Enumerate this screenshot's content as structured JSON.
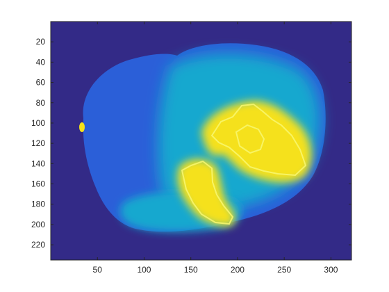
{
  "chart_data": {
    "type": "heatmap",
    "colormap": "parula",
    "colors": {
      "background": "#332a87",
      "low": "#2b5fd8",
      "mid": "#17a8cf",
      "high": "#f5e11a",
      "peak": "#f9f871",
      "axis": "#262626"
    },
    "xlim": [
      0,
      322
    ],
    "ylim": [
      235,
      0
    ],
    "x_ticks": [
      50,
      100,
      150,
      200,
      250,
      300
    ],
    "y_ticks": [
      20,
      40,
      60,
      80,
      100,
      120,
      140,
      160,
      180,
      200,
      220
    ],
    "x_tick_labels": [
      "50",
      "100",
      "150",
      "200",
      "250",
      "300"
    ],
    "y_tick_labels": [
      "20",
      "40",
      "60",
      "80",
      "100",
      "120",
      "140",
      "160",
      "180",
      "200",
      "220"
    ],
    "regions": [
      {
        "name": "tissue-section",
        "level": 0.35,
        "center": [
          190,
          130
        ],
        "extent": [
          135,
          95
        ]
      },
      {
        "name": "right-lobe",
        "level": 0.55,
        "center": [
          255,
          110
        ],
        "extent": [
          75,
          65
        ]
      },
      {
        "name": "hot-spot-upper",
        "level": 1.0,
        "center": [
          225,
          140
        ],
        "extent": [
          55,
          40
        ]
      },
      {
        "name": "hot-spot-lower",
        "level": 1.0,
        "center": [
          175,
          180
        ],
        "extent": [
          35,
          25
        ]
      },
      {
        "name": "speck",
        "level": 0.9,
        "center": [
          33,
          103
        ],
        "extent": [
          3,
          5
        ]
      }
    ]
  }
}
